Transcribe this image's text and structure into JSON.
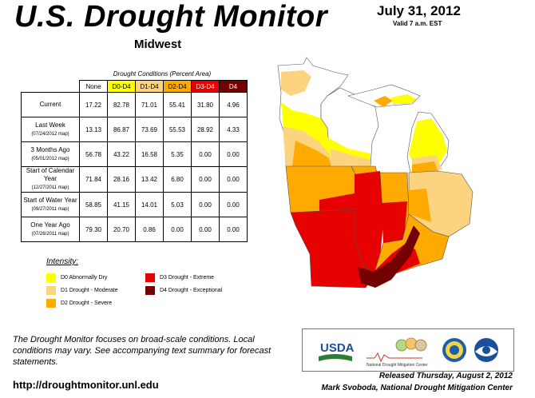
{
  "header": {
    "title": "U.S. Drought Monitor",
    "region": "Midwest",
    "date": "July 31, 2012",
    "valid": "Valid 7 a.m. EST"
  },
  "table": {
    "caption": "Drought Conditions (Percent Area)",
    "columns": [
      "None",
      "D0-D4",
      "D1-D4",
      "D2-D4",
      "D3-D4",
      "D4"
    ],
    "rows": [
      {
        "label": "Current",
        "sub": "",
        "values": [
          "17.22",
          "82.78",
          "71.01",
          "55.41",
          "31.80",
          "4.96"
        ]
      },
      {
        "label": "Last Week",
        "sub": "(07/24/2012 map)",
        "values": [
          "13.13",
          "86.87",
          "73.69",
          "55.53",
          "28.92",
          "4.33"
        ]
      },
      {
        "label": "3 Months Ago",
        "sub": "(05/01/2012 map)",
        "values": [
          "56.78",
          "43.22",
          "16.58",
          "5.35",
          "0.00",
          "0.00"
        ]
      },
      {
        "label": "Start of Calendar Year",
        "sub": "(12/27/2011 map)",
        "values": [
          "71.84",
          "28.16",
          "13.42",
          "6.80",
          "0.00",
          "0.00"
        ]
      },
      {
        "label": "Start of Water Year",
        "sub": "(09/27/2011 map)",
        "values": [
          "58.85",
          "41.15",
          "14.01",
          "5.03",
          "0.00",
          "0.00"
        ]
      },
      {
        "label": "One Year Ago",
        "sub": "(07/26/2011 map)",
        "values": [
          "79.30",
          "20.70",
          "0.86",
          "0.00",
          "0.00",
          "0.00"
        ]
      }
    ]
  },
  "legend": {
    "title": "Intensity:",
    "items": [
      {
        "label": "D0 Abnormally Dry",
        "color": "#ffff00"
      },
      {
        "label": "D1 Drought - Moderate",
        "color": "#fcd37f"
      },
      {
        "label": "D2 Drought - Severe",
        "color": "#ffaa00"
      },
      {
        "label": "D3 Drought - Extreme",
        "color": "#e60000"
      },
      {
        "label": "D4 Drought - Exceptional",
        "color": "#730000"
      }
    ]
  },
  "footer": {
    "note": "The Drought Monitor focuses on broad-scale conditions. Local conditions may vary. See accompanying text summary for forecast statements.",
    "url": "http://droughtmonitor.unl.edu",
    "released": "Released Thursday, August 2, 2012",
    "author": "Mark Svoboda, National Drought Mitigation Center"
  },
  "logos": {
    "usda": "USDA",
    "ndmc": "National Drought Mitigation Center"
  }
}
